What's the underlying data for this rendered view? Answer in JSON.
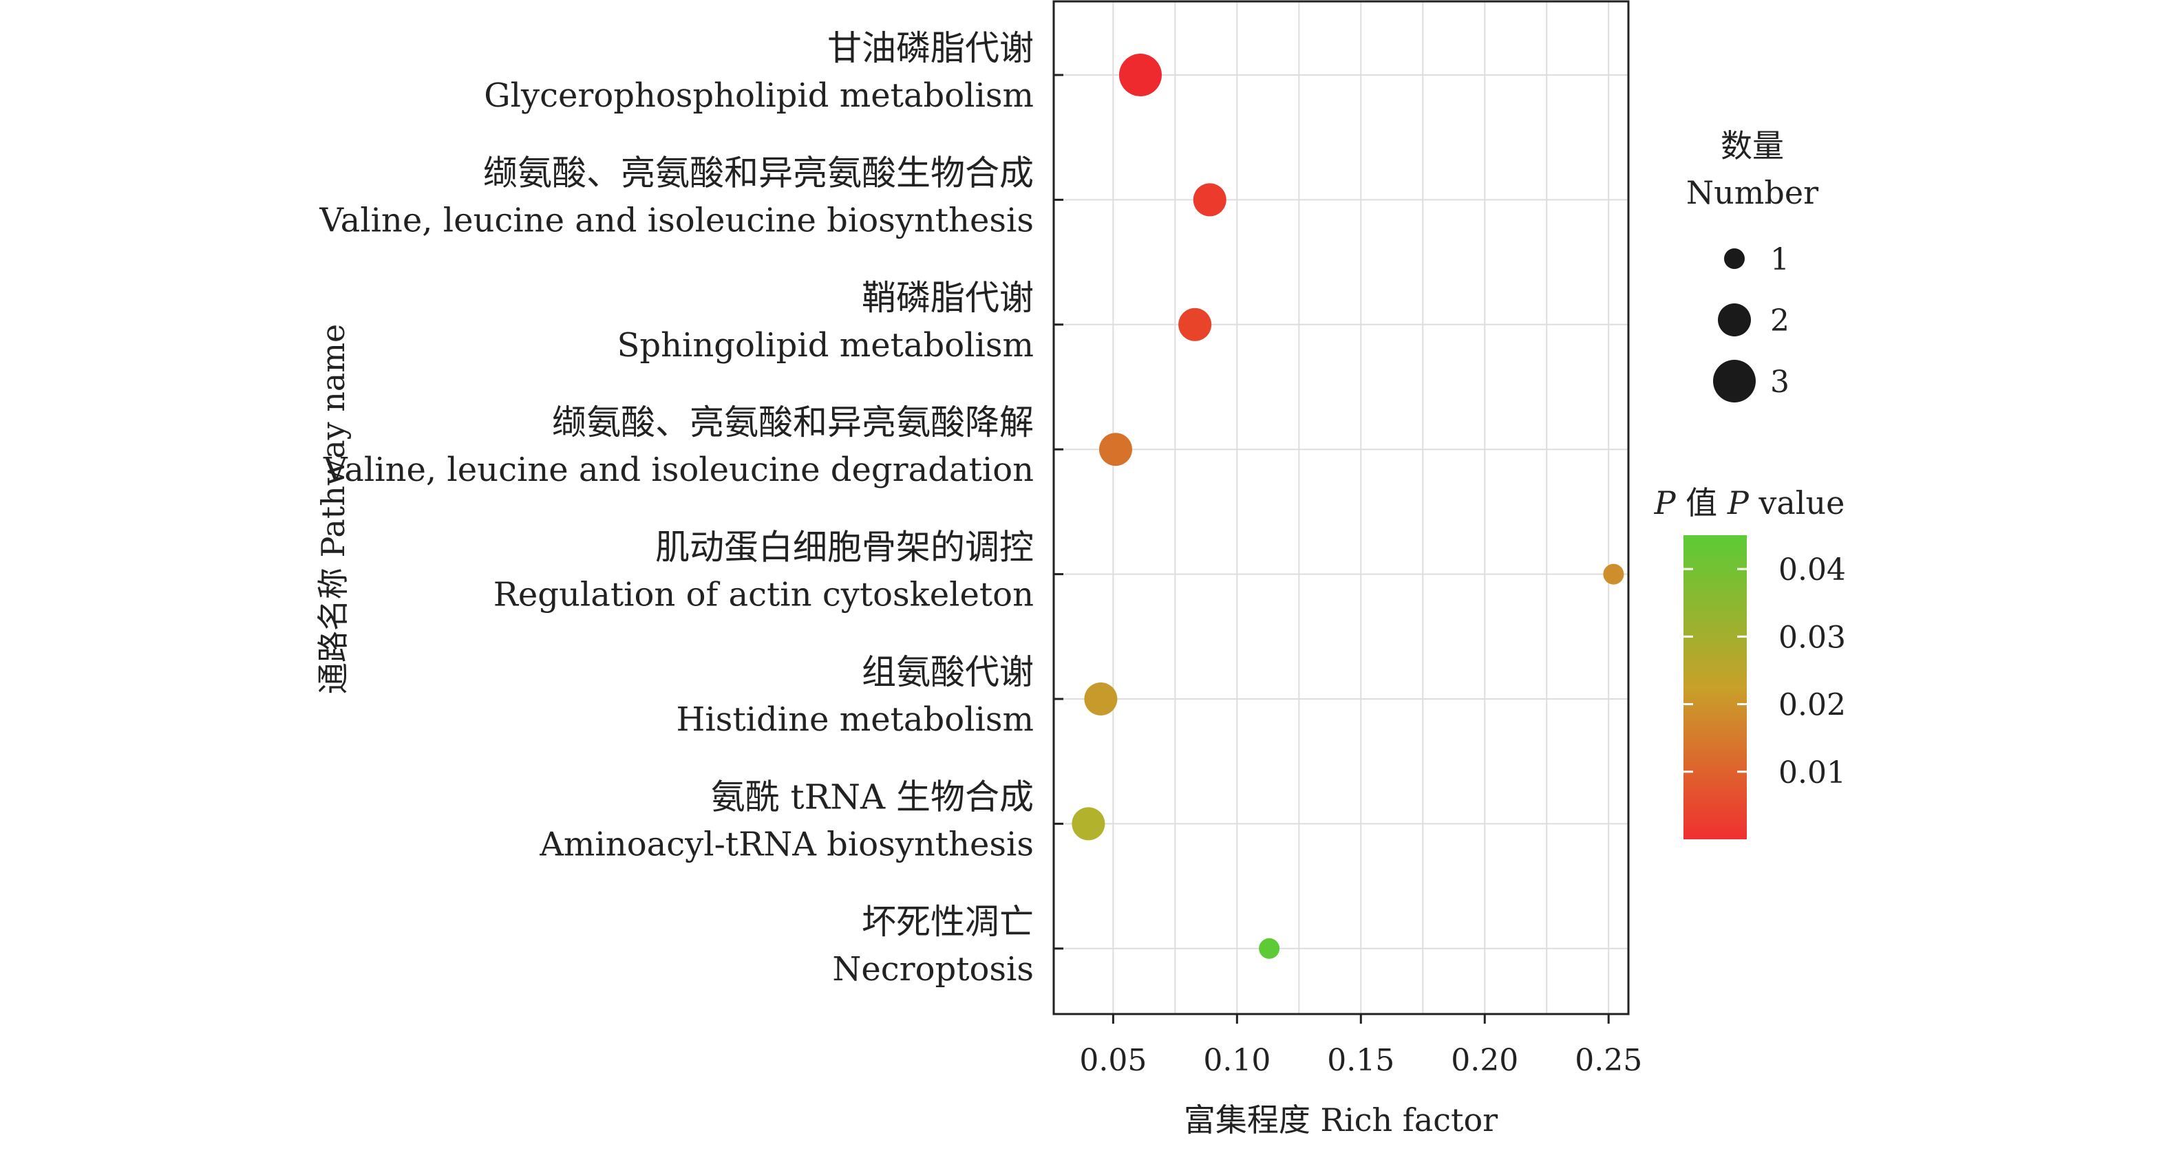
{
  "chart_data": {
    "type": "scatter",
    "subtype": "bubble",
    "title": "",
    "xlabel": "富集程度 Rich factor",
    "ylabel": "通路名称 Pathway name",
    "xlim": [
      0.026,
      0.258
    ],
    "xticks": [
      0.05,
      0.1,
      0.15,
      0.2,
      0.25
    ],
    "xtick_labels": [
      "0.05",
      "0.10",
      "0.15",
      "0.20",
      "0.25"
    ],
    "grid": true,
    "pathways": [
      {
        "name_cn": "甘油磷脂代谢",
        "name_en": "Glycerophospholipid metabolism",
        "rich_factor": 0.061,
        "number": 3,
        "p_value": 0.001
      },
      {
        "name_cn": "缬氨酸、亮氨酸和异亮氨酸生物合成",
        "name_en": "Valine, leucine and isoleucine biosynthesis",
        "rich_factor": 0.089,
        "number": 2,
        "p_value": 0.004
      },
      {
        "name_cn": "鞘磷脂代谢",
        "name_en": "Sphingolipid metabolism",
        "rich_factor": 0.083,
        "number": 2,
        "p_value": 0.006
      },
      {
        "name_cn": "缬氨酸、亮氨酸和异亮氨酸降解",
        "name_en": "Valine, leucine and isoleucine degradation",
        "rich_factor": 0.051,
        "number": 2,
        "p_value": 0.016
      },
      {
        "name_cn": "肌动蛋白细胞骨架的调控",
        "name_en": "Regulation of actin cytoskeleton",
        "rich_factor": 0.252,
        "number": 1,
        "p_value": 0.02
      },
      {
        "name_cn": "组氨酸代谢",
        "name_en": "Histidine metabolism",
        "rich_factor": 0.045,
        "number": 2,
        "p_value": 0.024
      },
      {
        "name_cn": "氨酰 tRNA 生物合成",
        "name_en": "Aminoacyl-tRNA biosynthesis",
        "rich_factor": 0.04,
        "number": 2,
        "p_value": 0.031
      },
      {
        "name_cn": "坏死性凋亡",
        "name_en": "Necroptosis",
        "rich_factor": 0.113,
        "number": 1,
        "p_value": 0.042
      }
    ],
    "size_legend": {
      "title_cn": "数量",
      "title_en": "Number",
      "entries": [
        {
          "value": 1,
          "label": "1"
        },
        {
          "value": 2,
          "label": "2"
        },
        {
          "value": 3,
          "label": "3"
        }
      ]
    },
    "color_legend": {
      "title_prefix": "P",
      "title_middle": " 值 ",
      "title_italic": "P",
      "title_suffix": " value",
      "range": [
        0.0,
        0.045
      ],
      "ticks": [
        0.04,
        0.03,
        0.02,
        0.01
      ],
      "tick_labels": [
        "0.04",
        "0.03",
        "0.02",
        "0.01"
      ],
      "low_color": "#f03030",
      "mid_color": "#c8a02a",
      "high_color": "#5ccb36"
    },
    "colors": {
      "point_colors": [
        "#ee2a2e",
        "#ec3a2c",
        "#e8442a",
        "#d6722a",
        "#cf8e2c",
        "#c69b2c",
        "#b2b22c",
        "#5ccb36"
      ],
      "legend_point": "#1a1a1a",
      "grid": "#dddddd",
      "axis": "#222222"
    }
  }
}
